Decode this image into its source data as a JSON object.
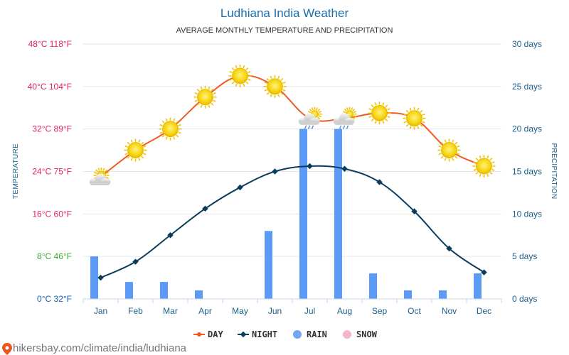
{
  "chart_data": {
    "type": "line",
    "title": "Ludhiana India Weather",
    "subtitle": "AVERAGE MONTHLY TEMPERATURE AND PRECIPITATION",
    "categories": [
      "Jan",
      "Feb",
      "Mar",
      "Apr",
      "May",
      "Jun",
      "Jul",
      "Aug",
      "Sep",
      "Oct",
      "Nov",
      "Dec"
    ],
    "series": [
      {
        "name": "DAY",
        "kind": "line",
        "axis": "temperature",
        "unit": "°C",
        "color": "#f15a24",
        "values": [
          23,
          28,
          32,
          38,
          42,
          40,
          34,
          34,
          35,
          34,
          28,
          25
        ],
        "icons": [
          "partly-cloudy-icon",
          "sun-icon",
          "sun-icon",
          "sun-icon",
          "sun-icon",
          "sun-icon",
          "rain-cloud-sun-icon",
          "rain-cloud-sun-icon",
          "sun-icon",
          "sun-icon",
          "sun-icon",
          "sun-icon"
        ]
      },
      {
        "name": "NIGHT",
        "kind": "line",
        "axis": "temperature",
        "unit": "°C",
        "color": "#0a3d5c",
        "values": [
          4,
          7,
          12,
          17,
          21,
          24,
          25,
          24.5,
          22,
          16.5,
          9.5,
          5
        ]
      },
      {
        "name": "RAIN",
        "kind": "bar",
        "axis": "precipitation",
        "unit": "days",
        "color": "#5b9bf5",
        "values": [
          5,
          2,
          2,
          1,
          0,
          8,
          20,
          20,
          3,
          1,
          1,
          3
        ]
      },
      {
        "name": "SNOW",
        "kind": "bar",
        "axis": "precipitation",
        "unit": "days",
        "color": "#f7b6c8",
        "values": [
          0,
          0,
          0,
          0,
          0,
          0,
          0,
          0,
          0,
          0,
          0,
          0
        ]
      }
    ],
    "y_left": {
      "label": "TEMPERATURE",
      "range": [
        0,
        48
      ],
      "ticks": [
        {
          "value": 48,
          "label": "48°C 118°F",
          "color": "#e0245e"
        },
        {
          "value": 40,
          "label": "40°C 104°F",
          "color": "#e0245e"
        },
        {
          "value": 32,
          "label": "32°C 89°F",
          "color": "#e0245e"
        },
        {
          "value": 24,
          "label": "24°C 75°F",
          "color": "#e0245e"
        },
        {
          "value": 16,
          "label": "16°C 60°F",
          "color": "#e0245e"
        },
        {
          "value": 8,
          "label": "8°C 46°F",
          "color": "#3aaa35"
        },
        {
          "value": 0,
          "label": "0°C 32°F",
          "color": "#1a5fb4"
        }
      ]
    },
    "y_right": {
      "label": "PRECIPITATION",
      "range": [
        0,
        30
      ],
      "ticks": [
        {
          "value": 30,
          "label": "30 days"
        },
        {
          "value": 25,
          "label": "25 days"
        },
        {
          "value": 20,
          "label": "20 days"
        },
        {
          "value": 15,
          "label": "15 days"
        },
        {
          "value": 10,
          "label": "10 days"
        },
        {
          "value": 5,
          "label": "5 days"
        },
        {
          "value": 0,
          "label": "0 days"
        }
      ]
    },
    "grid": true,
    "legend_position": "bottom-center"
  },
  "footer": {
    "source": "hikersbay.com/climate/india/ludhiana"
  }
}
